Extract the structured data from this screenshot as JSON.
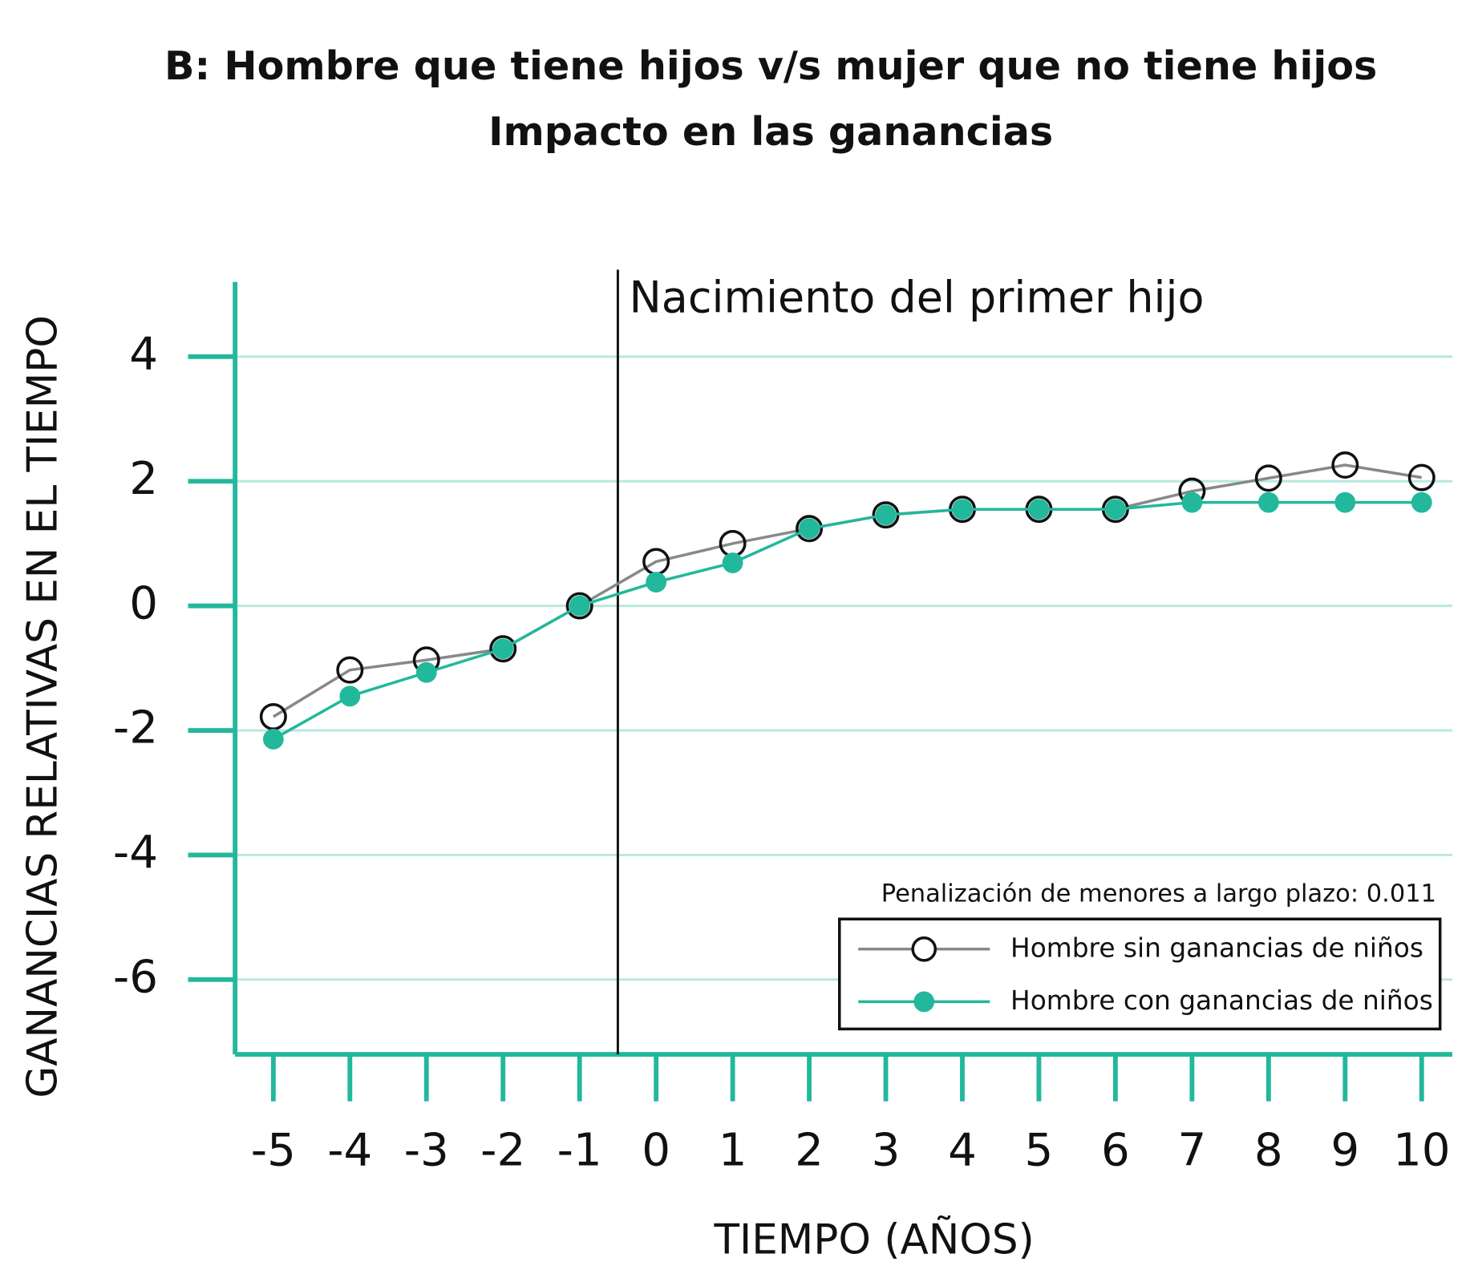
{
  "chart_data": {
    "type": "line",
    "title": "B: Hombre que tiene hijos v/s mujer que no tiene hijos",
    "subtitle": "Impacto en las ganancias",
    "x_label": "TIEMPO (AÑOS)",
    "y_label": "GANANCIAS RELATIVAS EN EL TIEMPO",
    "x": [
      -5,
      -4,
      -3,
      -2,
      -1,
      0,
      1,
      2,
      3,
      4,
      5,
      6,
      7,
      8,
      9,
      10
    ],
    "series": [
      {
        "name": "Hombre sin ganancias de niños",
        "color": "#888888",
        "marker": "open",
        "values": [
          -1.78,
          -1.03,
          -0.87,
          -0.69,
          0,
          0.71,
          1.0,
          1.24,
          1.46,
          1.55,
          1.55,
          1.55,
          1.84,
          2.05,
          2.26,
          2.06
        ]
      },
      {
        "name": "Hombre con ganancias de niños",
        "color": "#22b89c",
        "marker": "filled",
        "values": [
          -2.14,
          -1.45,
          -1.07,
          -0.69,
          0,
          0.38,
          0.69,
          1.24,
          1.46,
          1.55,
          1.55,
          1.55,
          1.66,
          1.66,
          1.66,
          1.66
        ]
      }
    ],
    "xlim": [
      -5.5,
      10.4
    ],
    "xticks": [
      -5,
      -4,
      -3,
      -2,
      -1,
      0,
      1,
      2,
      3,
      4,
      5,
      6,
      7,
      8,
      9,
      10
    ],
    "ylim": [
      -7.2,
      5.2
    ],
    "yticks": [
      -6,
      -4,
      -2,
      0,
      2,
      4
    ],
    "grid": true,
    "axis_color": "#22b89c",
    "grid_color": "#b8e8de",
    "vline": {
      "value": -0.5,
      "label": "Nacimiento del primer hijo"
    },
    "legend": {
      "corner": "lower right",
      "note": "Penalización de menores a largo plazo: 0.011"
    }
  }
}
